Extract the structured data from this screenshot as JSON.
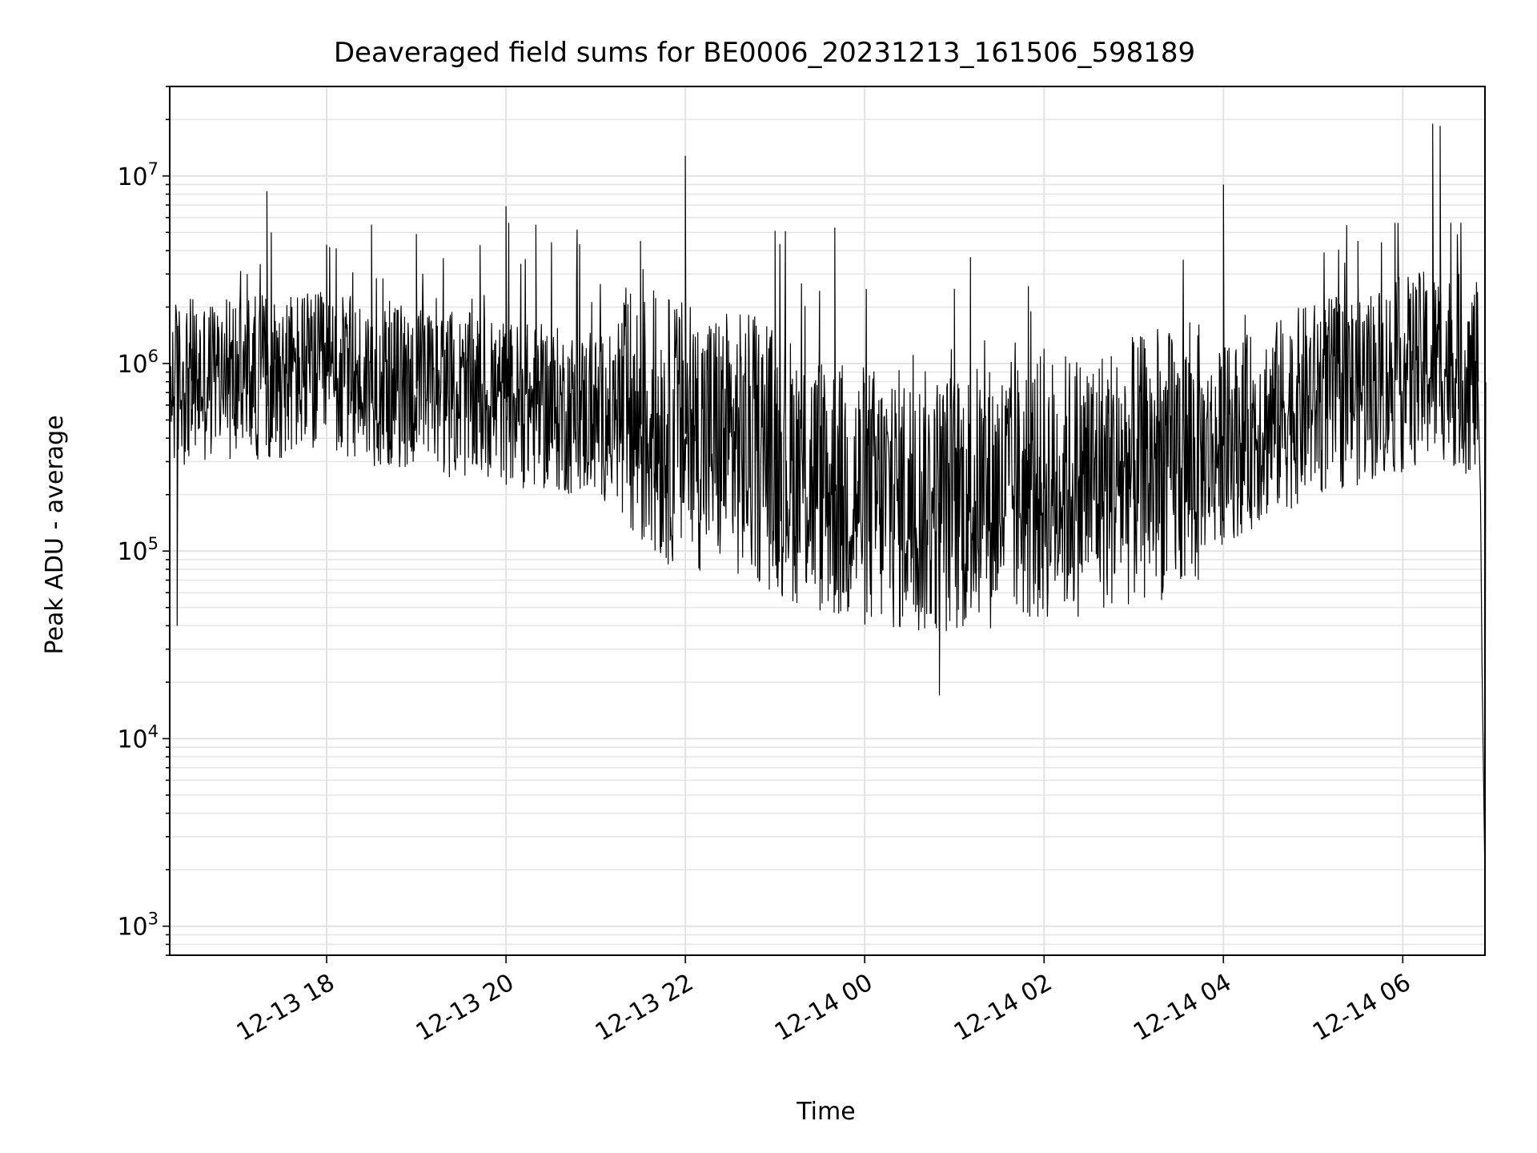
{
  "chart_data": {
    "type": "line",
    "title": "Deaveraged field sums for BE0006_20231213_161506_598189",
    "xlabel": "Time",
    "ylabel": "Peak ADU - average",
    "yscale": "log",
    "ylim": [
      700,
      30000000
    ],
    "xlim": [
      "2023-12-13T16:15",
      "2023-12-14T06:55"
    ],
    "grid": true,
    "line_color": "#000000",
    "x_ticks": [
      {
        "value": "2023-12-13T18:00",
        "label": "12-13 18"
      },
      {
        "value": "2023-12-13T20:00",
        "label": "12-13 20"
      },
      {
        "value": "2023-12-13T22:00",
        "label": "12-13 22"
      },
      {
        "value": "2023-12-14T00:00",
        "label": "12-14 00"
      },
      {
        "value": "2023-12-14T02:00",
        "label": "12-14 02"
      },
      {
        "value": "2023-12-14T04:00",
        "label": "12-14 04"
      },
      {
        "value": "2023-12-14T06:00",
        "label": "12-14 06"
      }
    ],
    "y_ticks": [
      {
        "value": 1000,
        "base": "10",
        "exp": "3"
      },
      {
        "value": 10000,
        "base": "10",
        "exp": "4"
      },
      {
        "value": 100000,
        "base": "10",
        "exp": "5"
      },
      {
        "value": 1000000,
        "base": "10",
        "exp": "6"
      },
      {
        "value": 10000000,
        "base": "10",
        "exp": "7"
      }
    ],
    "series": [
      {
        "values_envelope": [
          {
            "x": "2023-12-13T16:15",
            "y": 900000
          },
          {
            "x": "2023-12-13T16:20",
            "y": 40000
          },
          {
            "x": "2023-12-13T16:30",
            "y": 1200000
          },
          {
            "x": "2023-12-13T17:00",
            "y": 700000
          },
          {
            "x": "2023-12-13T17:20",
            "y": 8300000
          },
          {
            "x": "2023-12-13T18:00",
            "y": 4300000
          },
          {
            "x": "2023-12-13T18:30",
            "y": 5500000
          },
          {
            "x": "2023-12-13T19:00",
            "y": 4900000
          },
          {
            "x": "2023-12-13T20:00",
            "y": 6900000
          },
          {
            "x": "2023-12-13T20:20",
            "y": 5500000
          },
          {
            "x": "2023-12-13T21:30",
            "y": 4500000
          },
          {
            "x": "2023-12-13T22:00",
            "y": 12800000
          },
          {
            "x": "2023-12-13T23:00",
            "y": 5100000
          },
          {
            "x": "2023-12-13T23:40",
            "y": 5300000
          },
          {
            "x": "2023-12-14T00:50",
            "y": 17000
          },
          {
            "x": "2023-12-14T01:00",
            "y": 2500000
          },
          {
            "x": "2023-12-14T02:00",
            "y": 1200000
          },
          {
            "x": "2023-12-14T03:00",
            "y": 1300000
          },
          {
            "x": "2023-12-14T04:00",
            "y": 9000000
          },
          {
            "x": "2023-12-14T05:30",
            "y": 4500000
          },
          {
            "x": "2023-12-14T06:20",
            "y": 19000000
          },
          {
            "x": "2023-12-14T06:25",
            "y": 18500000
          },
          {
            "x": "2023-12-14T06:50",
            "y": 2400000
          },
          {
            "x": "2023-12-14T06:55",
            "y": 1750
          }
        ]
      }
    ]
  }
}
